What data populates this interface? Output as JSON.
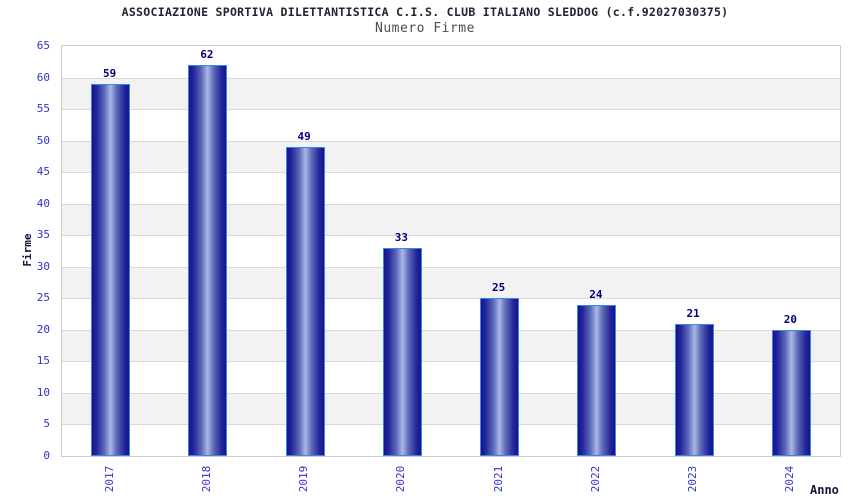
{
  "chart_data": {
    "type": "bar",
    "title": "ASSOCIAZIONE SPORTIVA DILETTANTISTICA C.I.S. CLUB ITALIANO SLEDDOG (c.f.92027030375)",
    "subtitle": "Numero Firme",
    "xlabel": "Anno",
    "ylabel": "Firme",
    "categories": [
      "2017",
      "2018",
      "2019",
      "2020",
      "2021",
      "2022",
      "2023",
      "2024"
    ],
    "values": [
      59,
      62,
      49,
      33,
      25,
      24,
      21,
      20
    ],
    "ylim": [
      0,
      65
    ],
    "ytick_step": 5,
    "grid": "horizontal-bands",
    "legend": "none",
    "colors": {
      "title_text": "#222233",
      "subtitle_text": "#4d4d55",
      "tick_text": "#3232cd",
      "value_label_text": "#00007d",
      "axis_title_text": "#15153a",
      "bar_edge_dark": "#14148a",
      "bar_mid_light": "#aab8e6",
      "bar_border": "#3d85f0",
      "band_gray": "#f2f2f2",
      "gridline": "#d9d9d9",
      "plot_border": "#cccccc",
      "background": "#ffffff"
    }
  }
}
